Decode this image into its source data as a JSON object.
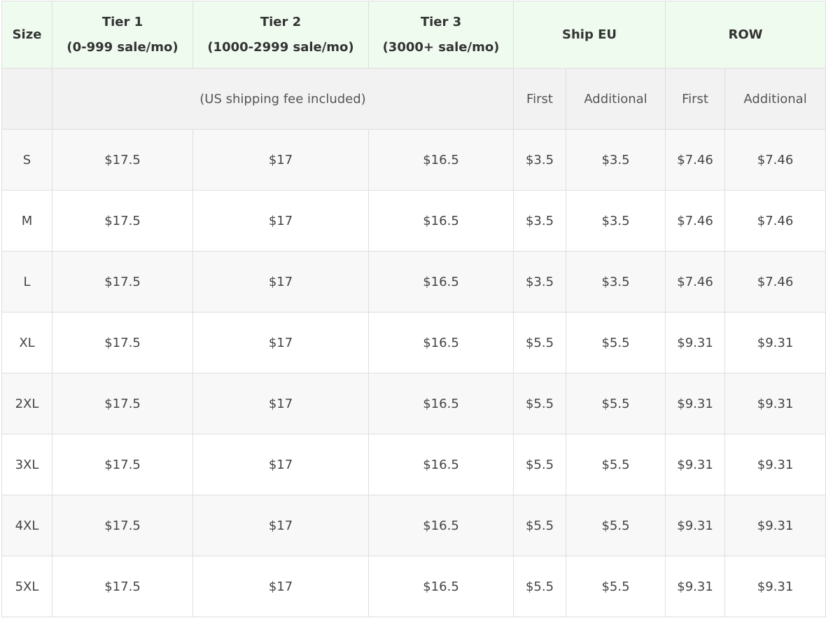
{
  "header": {
    "size": "Size",
    "tier1_name": "Tier 1",
    "tier1_range": "(0-999 sale/mo)",
    "tier2_name": "Tier 2",
    "tier2_range": "(1000-2999 sale/mo)",
    "tier3_name": "Tier 3",
    "tier3_range": "(3000+ sale/mo)",
    "ship_eu": "Ship EU",
    "row": "ROW"
  },
  "subheader": {
    "note": "(US shipping fee included)",
    "eu_first": "First",
    "eu_additional": "Additional",
    "row_first": "First",
    "row_additional": "Additional"
  },
  "colors": {
    "header_bg": "#effbef",
    "subheader_bg": "#f2f2f2",
    "stripe_bg": "#f8f8f8"
  },
  "rows": [
    [
      "S",
      "$17.5",
      "$17",
      "$16.5",
      "$3.5",
      "$3.5",
      "$7.46",
      "$7.46"
    ],
    [
      "M",
      "$17.5",
      "$17",
      "$16.5",
      "$3.5",
      "$3.5",
      "$7.46",
      "$7.46"
    ],
    [
      "L",
      "$17.5",
      "$17",
      "$16.5",
      "$3.5",
      "$3.5",
      "$7.46",
      "$7.46"
    ],
    [
      "XL",
      "$17.5",
      "$17",
      "$16.5",
      "$5.5",
      "$5.5",
      "$9.31",
      "$9.31"
    ],
    [
      "2XL",
      "$17.5",
      "$17",
      "$16.5",
      "$5.5",
      "$5.5",
      "$9.31",
      "$9.31"
    ],
    [
      "3XL",
      "$17.5",
      "$17",
      "$16.5",
      "$5.5",
      "$5.5",
      "$9.31",
      "$9.31"
    ],
    [
      "4XL",
      "$17.5",
      "$17",
      "$16.5",
      "$5.5",
      "$5.5",
      "$9.31",
      "$9.31"
    ],
    [
      "5XL",
      "$17.5",
      "$17",
      "$16.5",
      "$5.5",
      "$5.5",
      "$9.31",
      "$9.31"
    ]
  ]
}
